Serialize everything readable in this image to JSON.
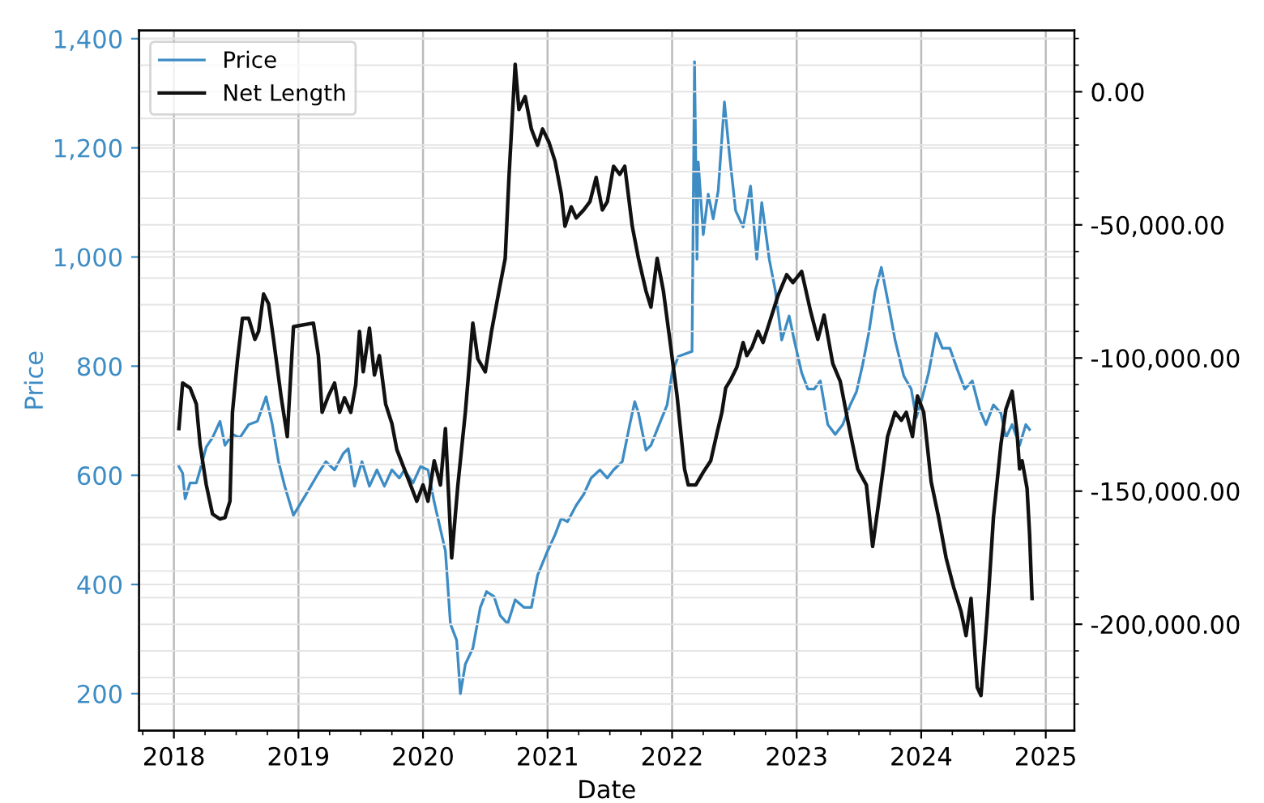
{
  "chart_data": {
    "type": "line",
    "xlabel": "Date",
    "ylabel": "Price",
    "xlim": [
      2017.72,
      2025.23
    ],
    "xticks": [
      {
        "value": 2017.75,
        "label": null
      },
      2018,
      {
        "value": 2018.25,
        "label": null
      },
      {
        "value": 2018.5,
        "label": null
      },
      {
        "value": 2018.75,
        "label": null
      },
      2019,
      {
        "value": 2019.25,
        "label": null
      },
      {
        "value": 2019.5,
        "label": null
      },
      {
        "value": 2019.75,
        "label": null
      },
      2020,
      {
        "value": 2020.25,
        "label": null
      },
      {
        "value": 2020.5,
        "label": null
      },
      {
        "value": 2020.75,
        "label": null
      },
      2021,
      {
        "value": 2021.25,
        "label": null
      },
      {
        "value": 2021.5,
        "label": null
      },
      {
        "value": 2021.75,
        "label": null
      },
      2022,
      {
        "value": 2022.25,
        "label": null
      },
      {
        "value": 2022.5,
        "label": null
      },
      {
        "value": 2022.75,
        "label": null
      },
      2023,
      {
        "value": 2023.25,
        "label": null
      },
      {
        "value": 2023.5,
        "label": null
      },
      {
        "value": 2023.75,
        "label": null
      },
      2024,
      {
        "value": 2024.25,
        "label": null
      },
      {
        "value": 2024.5,
        "label": null
      },
      {
        "value": 2024.75,
        "label": null
      },
      2025
    ],
    "ylim": [
      132,
      1415
    ],
    "yticks": [
      {
        "value": 200,
        "label": "200"
      },
      {
        "value": 400,
        "label": "400"
      },
      {
        "value": 600,
        "label": "600"
      },
      {
        "value": 800,
        "label": "800"
      },
      {
        "value": 1000,
        "label": "1,000"
      },
      {
        "value": 1200,
        "label": "1,200"
      },
      {
        "value": 1400,
        "label": "1,400"
      }
    ],
    "y2lim": [
      -240000,
      23000
    ],
    "y2ticks": [
      {
        "value": 20000,
        "label": null
      },
      {
        "value": 10000,
        "label": null
      },
      {
        "value": 0,
        "label": "0.00"
      },
      {
        "value": -10000,
        "label": null
      },
      {
        "value": -20000,
        "label": null
      },
      {
        "value": -30000,
        "label": null
      },
      {
        "value": -40000,
        "label": null
      },
      {
        "value": -50000,
        "label": "-50,000.00"
      },
      {
        "value": -60000,
        "label": null
      },
      {
        "value": -70000,
        "label": null
      },
      {
        "value": -80000,
        "label": null
      },
      {
        "value": -90000,
        "label": null
      },
      {
        "value": -100000,
        "label": "-100,000.00"
      },
      {
        "value": -110000,
        "label": null
      },
      {
        "value": -120000,
        "label": null
      },
      {
        "value": -130000,
        "label": null
      },
      {
        "value": -140000,
        "label": null
      },
      {
        "value": -150000,
        "label": "-150,000.00"
      },
      {
        "value": -160000,
        "label": null
      },
      {
        "value": -170000,
        "label": null
      },
      {
        "value": -180000,
        "label": null
      },
      {
        "value": -190000,
        "label": null
      },
      {
        "value": -200000,
        "label": "-200,000.00"
      },
      {
        "value": -210000,
        "label": null
      },
      {
        "value": -220000,
        "label": null
      },
      {
        "value": -230000,
        "label": null
      }
    ],
    "grid": true,
    "legend": "top left",
    "series": [
      {
        "name": "Price",
        "color": "#3d8cc4",
        "x": [
          2018.04,
          2018.07,
          2018.09,
          2018.13,
          2018.18,
          2018.21,
          2018.26,
          2018.31,
          2018.37,
          2018.41,
          2018.47,
          2018.53,
          2018.6,
          2018.67,
          2018.74,
          2018.79,
          2018.84,
          2018.89,
          2018.96,
          2019.06,
          2019.16,
          2019.22,
          2019.29,
          2019.36,
          2019.4,
          2019.45,
          2019.51,
          2019.57,
          2019.63,
          2019.69,
          2019.75,
          2019.81,
          2019.85,
          2019.92,
          2019.98,
          2020.04,
          2020.09,
          2020.15,
          2020.18,
          2020.22,
          2020.27,
          2020.3,
          2020.34,
          2020.4,
          2020.46,
          2020.51,
          2020.57,
          2020.62,
          2020.68,
          2020.74,
          2020.81,
          2020.87,
          2020.92,
          2020.99,
          2021.06,
          2021.11,
          2021.16,
          2021.23,
          2021.29,
          2021.35,
          2021.42,
          2021.48,
          2021.53,
          2021.6,
          2021.66,
          2021.7,
          2021.73,
          2021.79,
          2021.83,
          2021.88,
          2021.96,
          2022.0,
          2022.05,
          2022.16,
          2022.18,
          2022.2,
          2022.21,
          2022.25,
          2022.29,
          2022.33,
          2022.37,
          2022.42,
          2022.46,
          2022.51,
          2022.57,
          2022.63,
          2022.68,
          2022.72,
          2022.78,
          2022.83,
          2022.88,
          2022.94,
          2022.98,
          2023.04,
          2023.09,
          2023.14,
          2023.19,
          2023.25,
          2023.31,
          2023.37,
          2023.43,
          2023.48,
          2023.53,
          2023.58,
          2023.63,
          2023.68,
          2023.73,
          2023.79,
          2023.86,
          2023.92,
          2023.96,
          2024.01,
          2024.06,
          2024.12,
          2024.17,
          2024.23,
          2024.29,
          2024.35,
          2024.41,
          2024.47,
          2024.52,
          2024.58,
          2024.64,
          2024.68,
          2024.73,
          2024.79,
          2024.84,
          2024.87
        ],
        "values": [
          616,
          604,
          557,
          586,
          586,
          610,
          652,
          669,
          699,
          655,
          675,
          669,
          693,
          699,
          744,
          693,
          625,
          580,
          527,
          565,
          604,
          625,
          610,
          640,
          649,
          580,
          625,
          580,
          610,
          580,
          610,
          595,
          610,
          586,
          616,
          610,
          551,
          491,
          461,
          328,
          298,
          200,
          254,
          283,
          358,
          387,
          378,
          343,
          328,
          372,
          358,
          358,
          417,
          456,
          491,
          521,
          515,
          545,
          565,
          595,
          610,
          595,
          610,
          625,
          693,
          735,
          714,
          646,
          655,
          684,
          729,
          788,
          818,
          827,
          1358,
          996,
          1174,
          1041,
          1115,
          1070,
          1121,
          1284,
          1189,
          1085,
          1055,
          1130,
          996,
          1100,
          996,
          937,
          848,
          892,
          848,
          788,
          758,
          758,
          773,
          693,
          675,
          693,
          729,
          753,
          803,
          862,
          937,
          981,
          922,
          848,
          782,
          758,
          705,
          744,
          788,
          862,
          833,
          833,
          794,
          758,
          773,
          720,
          693,
          729,
          714,
          669,
          693,
          655,
          693,
          684
        ]
      },
      {
        "name": "Net Length",
        "color": "#111111",
        "axis": "y2",
        "x": [
          2018.04,
          2018.07,
          2018.13,
          2018.18,
          2018.21,
          2018.26,
          2018.31,
          2018.37,
          2018.41,
          2018.45,
          2018.47,
          2018.51,
          2018.55,
          2018.6,
          2018.65,
          2018.68,
          2018.72,
          2018.76,
          2018.8,
          2018.86,
          2018.91,
          2018.96,
          2019.12,
          2019.16,
          2019.19,
          2019.24,
          2019.29,
          2019.33,
          2019.37,
          2019.42,
          2019.46,
          2019.49,
          2019.52,
          2019.57,
          2019.61,
          2019.65,
          2019.7,
          2019.75,
          2019.79,
          2019.85,
          2019.9,
          2019.95,
          2020.0,
          2020.04,
          2020.09,
          2020.14,
          2020.18,
          2020.23,
          2020.28,
          2020.34,
          2020.4,
          2020.44,
          2020.5,
          2020.55,
          2020.61,
          2020.66,
          2020.69,
          2020.74,
          2020.77,
          2020.82,
          2020.87,
          2020.92,
          2020.96,
          2021.01,
          2021.06,
          2021.11,
          2021.14,
          2021.19,
          2021.23,
          2021.29,
          2021.34,
          2021.39,
          2021.44,
          2021.48,
          2021.53,
          2021.58,
          2021.62,
          2021.68,
          2021.73,
          2021.79,
          2021.83,
          2021.88,
          2021.93,
          2021.99,
          2022.04,
          2022.1,
          2022.13,
          2022.19,
          2022.25,
          2022.31,
          2022.36,
          2022.4,
          2022.43,
          2022.47,
          2022.52,
          2022.57,
          2022.6,
          2022.64,
          2022.69,
          2022.73,
          2022.78,
          2022.85,
          2022.92,
          2022.97,
          2023.04,
          2023.11,
          2023.17,
          2023.22,
          2023.29,
          2023.35,
          2023.41,
          2023.49,
          2023.56,
          2023.61,
          2023.66,
          2023.73,
          2023.79,
          2023.84,
          2023.88,
          2023.93,
          2023.97,
          2024.02,
          2024.08,
          2024.14,
          2024.2,
          2024.26,
          2024.32,
          2024.36,
          2024.4,
          2024.45,
          2024.48,
          2024.53,
          2024.58,
          2024.64,
          2024.68,
          2024.73,
          2024.77,
          2024.79,
          2024.81,
          2024.85,
          2024.87,
          2024.89
        ],
        "values": [
          -126500,
          -109400,
          -111300,
          -117300,
          -132500,
          -147700,
          -158600,
          -160500,
          -159900,
          -153800,
          -120400,
          -100900,
          -85100,
          -85100,
          -93000,
          -90000,
          -76000,
          -79600,
          -93000,
          -114300,
          -129500,
          -88200,
          -86900,
          -99100,
          -120400,
          -114300,
          -109400,
          -120400,
          -114900,
          -120400,
          -110000,
          -90000,
          -105200,
          -88800,
          -106400,
          -99100,
          -117300,
          -124600,
          -134400,
          -141700,
          -147700,
          -153800,
          -147700,
          -153800,
          -138600,
          -147700,
          -126500,
          -175100,
          -147700,
          -120400,
          -86900,
          -100300,
          -105200,
          -90000,
          -74800,
          -62600,
          -32200,
          10300,
          -6700,
          -1800,
          -14000,
          -20100,
          -14000,
          -18800,
          -26100,
          -38300,
          -50500,
          -43200,
          -47400,
          -44400,
          -41300,
          -32200,
          -44400,
          -41300,
          -28000,
          -31000,
          -28000,
          -50500,
          -62600,
          -74800,
          -80900,
          -62600,
          -74800,
          -96100,
          -114300,
          -141700,
          -147700,
          -147700,
          -142900,
          -138600,
          -128300,
          -120400,
          -111300,
          -108200,
          -103400,
          -94200,
          -99100,
          -96100,
          -90000,
          -94200,
          -86900,
          -76600,
          -68700,
          -71700,
          -67500,
          -82100,
          -93000,
          -83900,
          -102100,
          -108800,
          -123400,
          -141700,
          -147700,
          -170800,
          -153800,
          -129500,
          -120400,
          -123400,
          -120400,
          -129500,
          -114300,
          -120400,
          -146500,
          -159900,
          -175100,
          -186000,
          -195200,
          -204300,
          -190300,
          -223700,
          -226800,
          -196400,
          -159900,
          -132500,
          -119200,
          -112500,
          -128300,
          -141700,
          -138600,
          -149000,
          -166000,
          -190300
        ]
      }
    ]
  }
}
